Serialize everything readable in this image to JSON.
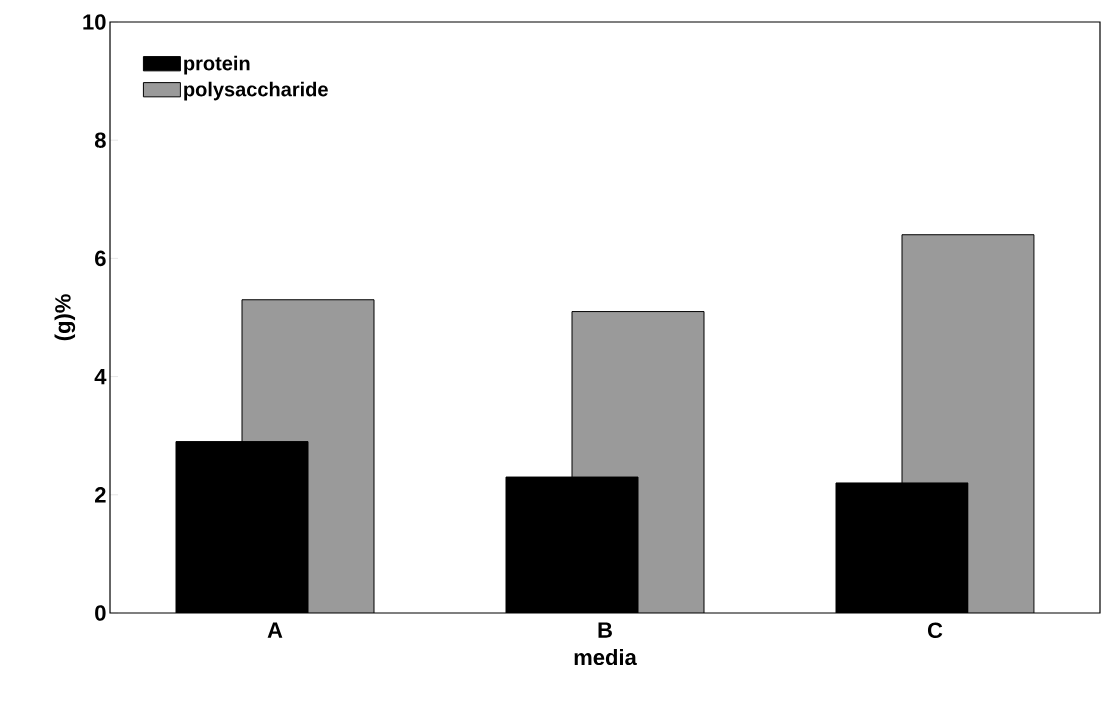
{
  "chart_data": {
    "type": "bar",
    "xlabel": "media",
    "ylabel": "(g)%",
    "categories": [
      "A",
      "B",
      "C"
    ],
    "series": [
      {
        "name": "protein",
        "color": "#000000",
        "values": [
          2.9,
          2.3,
          2.2
        ]
      },
      {
        "name": "polysaccharide",
        "color": "#9a9a9a",
        "values": [
          5.3,
          5.1,
          6.4
        ]
      }
    ],
    "ylim": [
      0,
      10
    ],
    "yticks": [
      0,
      2,
      4,
      6,
      8,
      10
    ],
    "grid": false,
    "legend": "top left"
  }
}
